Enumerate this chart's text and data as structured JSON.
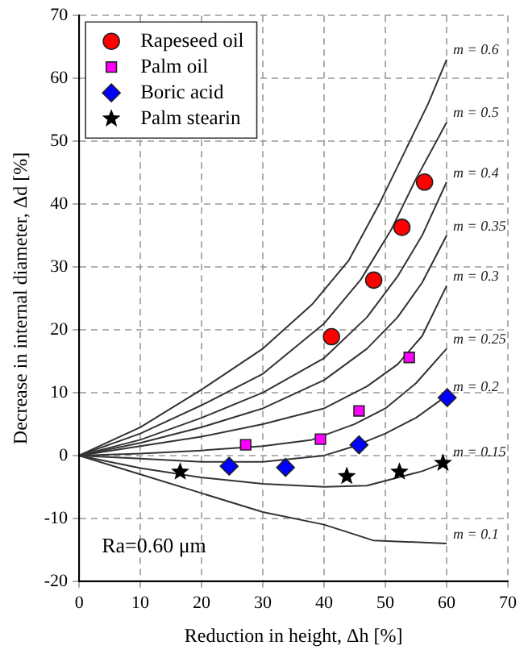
{
  "chart_data": {
    "type": "scatter",
    "xlabel": "Reduction in height, Δh [%]",
    "ylabel": "Decrease in internal diameter, Δd [%]",
    "xlim": [
      0,
      70
    ],
    "xticks": [
      0,
      10,
      20,
      30,
      40,
      50,
      60,
      70
    ],
    "ylim": [
      -20,
      70
    ],
    "yticks": [
      -20,
      -10,
      0,
      10,
      20,
      30,
      40,
      50,
      60,
      70
    ],
    "grid": true,
    "legend": "top left",
    "annotations": [
      "Ra=0.60 μm"
    ],
    "series": [
      {
        "name": "Rapeseed oil",
        "marker": "circle",
        "color": "#ff0000",
        "x": [
          41.2,
          48.1,
          52.7,
          56.4
        ],
        "values": [
          18.9,
          27.9,
          36.3,
          43.5
        ]
      },
      {
        "name": "Palm oil",
        "marker": "square",
        "color": "#ff00ff",
        "x": [
          27.2,
          39.4,
          45.7,
          53.9
        ],
        "values": [
          1.7,
          2.6,
          7.1,
          15.6
        ]
      },
      {
        "name": "Boric acid",
        "marker": "diamond",
        "color": "#0000ff",
        "x": [
          24.5,
          33.7,
          45.7,
          60.1
        ],
        "values": [
          -1.7,
          -1.9,
          1.7,
          9.2
        ]
      },
      {
        "name": "Palm stearin",
        "marker": "star",
        "color": "#000000",
        "x": [
          16.5,
          43.7,
          52.3,
          59.4
        ],
        "values": [
          -2.6,
          -3.3,
          -2.6,
          -1.2
        ]
      },
      {
        "name": "m = 0.6",
        "type": "line",
        "color": "#333333",
        "x": [
          0,
          10,
          20,
          30,
          38,
          44,
          49,
          54,
          57,
          60
        ],
        "values": [
          0,
          4.5,
          10.5,
          17,
          24,
          31,
          40,
          50,
          56,
          63
        ]
      },
      {
        "name": "m = 0.5",
        "type": "line",
        "color": "#333333",
        "x": [
          0,
          10,
          20,
          30,
          40,
          46,
          51,
          55,
          60
        ],
        "values": [
          0,
          3.5,
          8,
          13,
          21,
          28,
          36,
          44,
          53
        ]
      },
      {
        "name": "m = 0.4",
        "type": "line",
        "color": "#333333",
        "x": [
          0,
          10,
          20,
          30,
          40,
          47,
          52,
          56,
          60
        ],
        "values": [
          0,
          2.5,
          6,
          10,
          15.5,
          22,
          28.5,
          35,
          43.5
        ]
      },
      {
        "name": "m = 0.35",
        "type": "line",
        "color": "#333333",
        "x": [
          0,
          10,
          20,
          30,
          40,
          47,
          52,
          56,
          60
        ],
        "values": [
          0,
          2,
          4.5,
          7.5,
          12,
          17,
          22,
          27.5,
          35
        ]
      },
      {
        "name": "m = 0.3",
        "type": "line",
        "color": "#333333",
        "x": [
          0,
          10,
          20,
          30,
          40,
          47,
          52,
          56,
          60
        ],
        "values": [
          0,
          1.5,
          3,
          5,
          7.5,
          11,
          14.5,
          19,
          27
        ]
      },
      {
        "name": "m = 0.25",
        "type": "line",
        "color": "#333333",
        "x": [
          0,
          10,
          20,
          30,
          38,
          45,
          50,
          55,
          60
        ],
        "values": [
          0,
          0.3,
          0.8,
          1.5,
          2.5,
          5,
          7.5,
          11.5,
          17
        ]
      },
      {
        "name": "m = 0.2",
        "type": "line",
        "color": "#333333",
        "x": [
          0,
          10,
          20,
          30,
          40,
          45,
          50,
          55,
          60
        ],
        "values": [
          0,
          -0.5,
          -1,
          -1,
          0,
          1.5,
          3.5,
          6,
          9.5
        ]
      },
      {
        "name": "m = 0.15",
        "type": "line",
        "color": "#333333",
        "x": [
          0,
          10,
          20,
          30,
          40,
          47,
          52,
          56,
          60
        ],
        "values": [
          0,
          -2,
          -3.5,
          -4.5,
          -5,
          -4.8,
          -3.5,
          -2.5,
          -1
        ]
      },
      {
        "name": "m = 0.1",
        "type": "line",
        "color": "#333333",
        "x": [
          0,
          10,
          20,
          30,
          40,
          48,
          60
        ],
        "values": [
          0,
          -3,
          -6,
          -9,
          -11,
          -13.5,
          -14
        ]
      }
    ]
  }
}
